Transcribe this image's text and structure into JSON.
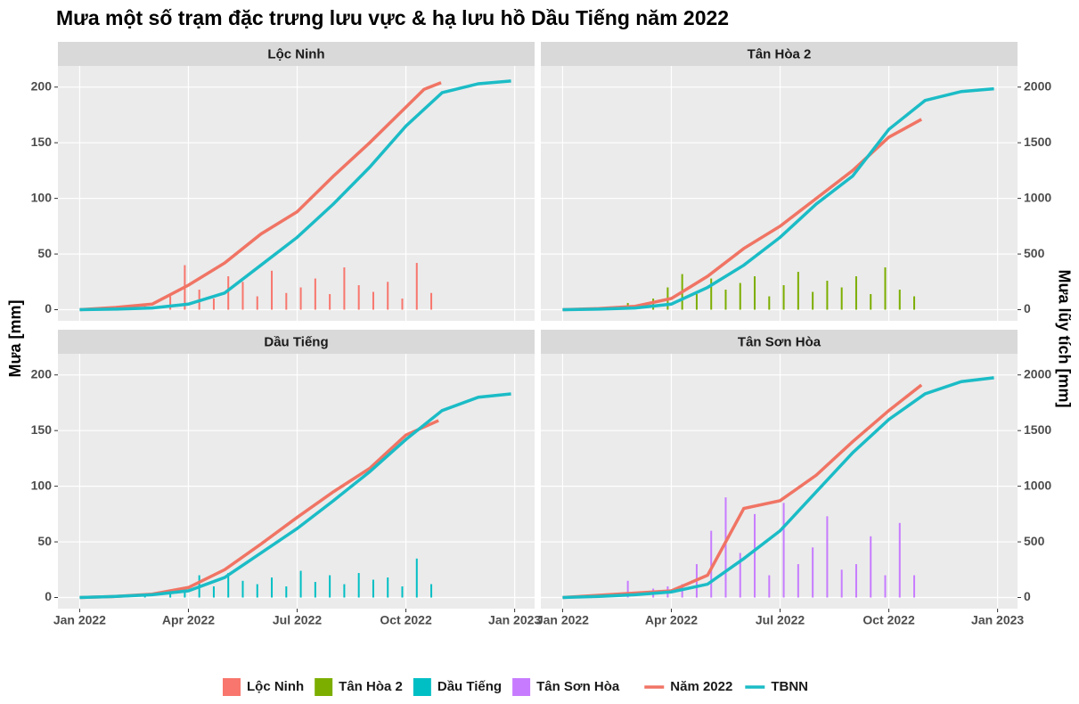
{
  "chart_data": {
    "type": "bar",
    "title": "Mưa một số trạm đặc trưng lưu vực & hạ lưu hồ Dầu Tiếng năm 2022",
    "ylabel": "Mưa [mm]",
    "y2label": "Mưa lũy tích [mm]",
    "xlim": [
      -0.6,
      12.55
    ],
    "xticks": [
      {
        "value": 0,
        "label": "Jan 2022"
      },
      {
        "value": 3,
        "label": "Apr 2022"
      },
      {
        "value": 6,
        "label": "Jul 2022"
      },
      {
        "value": 9,
        "label": "Oct 2022"
      },
      {
        "value": 12,
        "label": "Jan 2023"
      }
    ],
    "ylim": [
      -10,
      219
    ],
    "yticks": [
      0,
      50,
      100,
      150,
      200
    ],
    "y2lim": [
      -100,
      2190
    ],
    "y2ticks": [
      0,
      500,
      1000,
      1500,
      2000
    ],
    "grid": true,
    "legend": "bottom",
    "line_series": [
      {
        "name": "Năm 2022",
        "color": "#f07464",
        "axis": "y2"
      },
      {
        "name": "TBNN",
        "color": "#1bbcc6",
        "axis": "y2"
      }
    ],
    "facets": [
      {
        "name": "Lộc Ninh",
        "color": "#f8766d",
        "x": [
          1.8,
          2.5,
          2.9,
          3.3,
          3.7,
          4.1,
          4.5,
          4.9,
          5.3,
          5.7,
          6.1,
          6.5,
          6.9,
          7.3,
          7.7,
          8.1,
          8.5,
          8.9,
          9.3,
          9.7
        ],
        "values": [
          5,
          12,
          40,
          18,
          10,
          30,
          25,
          12,
          35,
          15,
          20,
          28,
          14,
          38,
          22,
          16,
          25,
          10,
          42,
          15
        ],
        "lines": [
          {
            "x": [
              0,
              1,
              2,
              3,
              4,
              5,
              6,
              7,
              8,
              9,
              9.5,
              9.97
            ],
            "values": [
              0,
              20,
              50,
              220,
              420,
              680,
              880,
              1200,
              1500,
              1820,
              1980,
              2040
            ]
          },
          {
            "x": [
              0,
              1,
              2,
              3,
              4,
              5,
              6,
              7,
              8,
              9,
              10,
              11,
              11.9
            ],
            "values": [
              0,
              5,
              15,
              50,
              150,
              400,
              650,
              950,
              1280,
              1650,
              1950,
              2030,
              2055
            ]
          }
        ]
      },
      {
        "name": "Tân Hòa 2",
        "color": "#7cae00",
        "x": [
          1.8,
          2.5,
          2.9,
          3.3,
          3.7,
          4.1,
          4.5,
          4.9,
          5.3,
          5.7,
          6.1,
          6.5,
          6.9,
          7.3,
          7.7,
          8.1,
          8.5,
          8.9,
          9.3,
          9.7
        ],
        "values": [
          6,
          10,
          20,
          32,
          14,
          28,
          18,
          24,
          30,
          12,
          22,
          34,
          16,
          26,
          20,
          30,
          14,
          38,
          18,
          12
        ],
        "lines": [
          {
            "x": [
              0,
              1,
              2,
              3,
              4,
              5,
              6,
              7,
              8,
              9,
              9.9
            ],
            "values": [
              0,
              10,
              30,
              100,
              300,
              550,
              750,
              1000,
              1250,
              1550,
              1710
            ]
          },
          {
            "x": [
              0,
              1,
              2,
              3,
              4,
              5,
              6,
              7,
              8,
              9,
              10,
              11,
              11.9
            ],
            "values": [
              0,
              5,
              15,
              50,
              200,
              400,
              650,
              950,
              1200,
              1620,
              1880,
              1960,
              1985
            ]
          }
        ]
      },
      {
        "name": "Dầu Tiếng",
        "color": "#00bfc4",
        "x": [
          1.8,
          2.5,
          2.9,
          3.3,
          3.7,
          4.1,
          4.5,
          4.9,
          5.3,
          5.7,
          6.1,
          6.5,
          6.9,
          7.3,
          7.7,
          8.1,
          8.5,
          8.9,
          9.3,
          9.7
        ],
        "values": [
          3,
          6,
          8,
          20,
          10,
          22,
          15,
          12,
          18,
          10,
          24,
          14,
          20,
          12,
          22,
          16,
          18,
          10,
          35,
          12
        ],
        "lines": [
          {
            "x": [
              0,
              1,
              2,
              3,
              4,
              5,
              6,
              7,
              8,
              9,
              9.9
            ],
            "values": [
              0,
              10,
              30,
              90,
              250,
              480,
              720,
              950,
              1160,
              1460,
              1590
            ]
          },
          {
            "x": [
              0,
              1,
              2,
              3,
              4,
              5,
              6,
              7,
              8,
              9,
              10,
              11,
              11.9
            ],
            "values": [
              0,
              10,
              25,
              60,
              180,
              400,
              620,
              870,
              1130,
              1420,
              1680,
              1800,
              1830
            ]
          }
        ]
      },
      {
        "name": "Tân Sơn Hòa",
        "color": "#c77cff",
        "x": [
          1.8,
          2.5,
          2.9,
          3.3,
          3.7,
          4.1,
          4.5,
          4.9,
          5.3,
          5.7,
          6.1,
          6.5,
          6.9,
          7.3,
          7.7,
          8.1,
          8.5,
          8.9,
          9.3,
          9.7
        ],
        "values": [
          15,
          8,
          10,
          12,
          30,
          60,
          90,
          40,
          75,
          20,
          85,
          30,
          45,
          73,
          25,
          30,
          55,
          20,
          67,
          20
        ],
        "lines": [
          {
            "x": [
              0,
              1,
              2,
              3,
              4,
              5,
              6,
              7,
              8,
              9,
              9.9
            ],
            "values": [
              0,
              20,
              40,
              60,
              200,
              800,
              870,
              1100,
              1400,
              1680,
              1910
            ]
          },
          {
            "x": [
              0,
              1,
              2,
              3,
              4,
              5,
              6,
              7,
              8,
              9,
              10,
              11,
              11.9
            ],
            "values": [
              0,
              10,
              25,
              50,
              120,
              350,
              600,
              950,
              1300,
              1600,
              1830,
              1940,
              1975
            ]
          }
        ]
      }
    ]
  }
}
